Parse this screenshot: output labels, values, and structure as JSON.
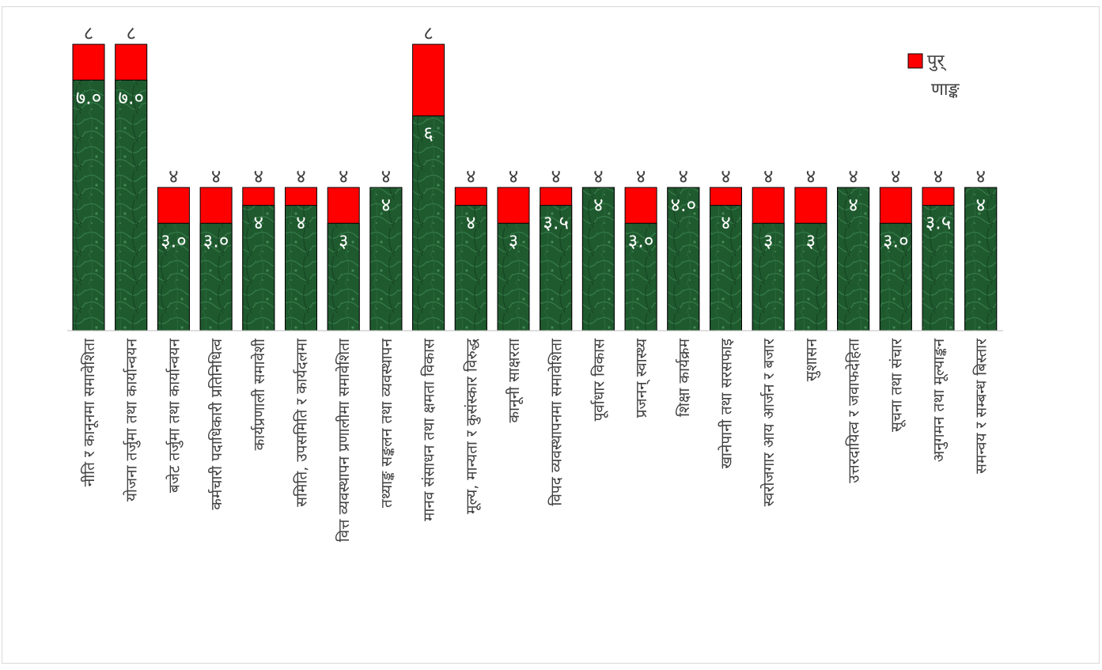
{
  "chart_data": {
    "type": "bar",
    "stacked": "overlay",
    "categories": [
      "नीति र कानूनमा समावेशिता",
      "योजना तर्जुमा तथा कार्यान्वयन",
      "बजेट तर्जुमा तथा कार्यान्वयन",
      "कर्मचारी पदाधिकारी प्रतिनिधित्व",
      "कार्यप्रणाली समावेशी",
      "समिति, उपसमिति र कार्यदलमा",
      "वित्त व्यवस्थापन प्रणालीमा समावेशिता",
      "तथ्याङ्क सङ्कलन तथा व्यवस्थापन",
      "मानव संसाधन तथा क्षमता विकास",
      "मूल्य, मान्यता र कुसंस्कार विरुद्ध",
      "कानूनी साक्षरता",
      "विपद व्यवस्थापनमा समावेशिता",
      "पूर्वाधार विकास",
      "प्रजनन् स्वास्थ्य",
      "शिक्षा कार्यक्रम",
      "खानेपानी तथा सरसफाइ",
      "स्वरोजगार आय आर्जन र बजार",
      "सुशासन",
      "उत्तरदायित्व र जवाफदेहिता",
      "सूचना तथा संचार",
      "अनुगमन तथा मूल्याङ्कन",
      "समन्वय र सम्बन्ध बिस्तार"
    ],
    "series": [
      {
        "name": "पुर्णाङ्क",
        "color": "#ff0000",
        "values": [
          8,
          8,
          4,
          4,
          4,
          4,
          4,
          4,
          8,
          4,
          4,
          4,
          4,
          4,
          4,
          4,
          4,
          4,
          4,
          4,
          4,
          4
        ],
        "labels": [
          "८",
          "८",
          "४",
          "४",
          "४",
          "४",
          "४",
          "४",
          "८",
          "४",
          "४",
          "४",
          "४",
          "४",
          "४",
          "४",
          "४",
          "४",
          "४",
          "४",
          "४",
          "४"
        ]
      },
      {
        "color": "#1e5c30",
        "values": [
          7.0,
          7.0,
          3.0,
          3.0,
          3.5,
          3.5,
          3,
          4,
          6,
          3.5,
          3,
          3.5,
          4,
          3.0,
          4.0,
          3.5,
          3,
          3,
          4,
          3.0,
          3.5,
          4
        ],
        "labels": [
          "७.०",
          "७.०",
          "३.०",
          "३.०",
          "४",
          "४",
          "३",
          "४",
          "६",
          "४",
          "३",
          "३.५",
          "४",
          "३.०",
          "४.०",
          "४",
          "३",
          "३",
          "४",
          "३.०",
          "३.५",
          "४"
        ]
      }
    ],
    "ylim": [
      0,
      8
    ],
    "grid": false,
    "legend": "top-right"
  }
}
